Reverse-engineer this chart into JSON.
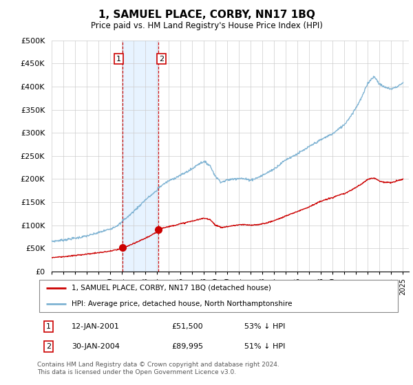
{
  "title": "1, SAMUEL PLACE, CORBY, NN17 1BQ",
  "subtitle": "Price paid vs. HM Land Registry's House Price Index (HPI)",
  "ylim": [
    0,
    500000
  ],
  "yticks": [
    0,
    50000,
    100000,
    150000,
    200000,
    250000,
    300000,
    350000,
    400000,
    450000,
    500000
  ],
  "ytick_labels": [
    "£0",
    "£50K",
    "£100K",
    "£150K",
    "£200K",
    "£250K",
    "£300K",
    "£350K",
    "£400K",
    "£450K",
    "£500K"
  ],
  "sale1_date": 2001.04,
  "sale1_price": 51500,
  "sale2_date": 2004.08,
  "sale2_price": 89995,
  "sale_color": "#cc0000",
  "hpi_color": "#7fb3d3",
  "legend_sale": "1, SAMUEL PLACE, CORBY, NN17 1BQ (detached house)",
  "legend_hpi": "HPI: Average price, detached house, North Northamptonshire",
  "table_row1": [
    "1",
    "12-JAN-2001",
    "£51,500",
    "53% ↓ HPI"
  ],
  "table_row2": [
    "2",
    "30-JAN-2004",
    "£89,995",
    "51% ↓ HPI"
  ],
  "footnote": "Contains HM Land Registry data © Crown copyright and database right 2024.\nThis data is licensed under the Open Government Licence v3.0.",
  "xmin": 1995.0,
  "xmax": 2025.5,
  "hpi_points": [
    [
      1995.0,
      65000
    ],
    [
      1995.5,
      66500
    ],
    [
      1996.0,
      68000
    ],
    [
      1996.5,
      70000
    ],
    [
      1997.0,
      72000
    ],
    [
      1997.5,
      74000
    ],
    [
      1998.0,
      77000
    ],
    [
      1998.5,
      80000
    ],
    [
      1999.0,
      84000
    ],
    [
      1999.5,
      88000
    ],
    [
      2000.0,
      92000
    ],
    [
      2000.5,
      98000
    ],
    [
      2001.0,
      106000
    ],
    [
      2001.04,
      110000
    ],
    [
      2001.5,
      118000
    ],
    [
      2002.0,
      130000
    ],
    [
      2002.5,
      142000
    ],
    [
      2003.0,
      155000
    ],
    [
      2003.5,
      165000
    ],
    [
      2004.0,
      175000
    ],
    [
      2004.08,
      180000
    ],
    [
      2004.5,
      188000
    ],
    [
      2005.0,
      196000
    ],
    [
      2005.5,
      202000
    ],
    [
      2006.0,
      208000
    ],
    [
      2006.5,
      215000
    ],
    [
      2007.0,
      222000
    ],
    [
      2007.5,
      232000
    ],
    [
      2008.0,
      238000
    ],
    [
      2008.5,
      230000
    ],
    [
      2009.0,
      205000
    ],
    [
      2009.5,
      193000
    ],
    [
      2010.0,
      198000
    ],
    [
      2010.5,
      200000
    ],
    [
      2011.0,
      202000
    ],
    [
      2011.5,
      200000
    ],
    [
      2012.0,
      198000
    ],
    [
      2012.5,
      202000
    ],
    [
      2013.0,
      208000
    ],
    [
      2013.5,
      215000
    ],
    [
      2014.0,
      222000
    ],
    [
      2014.5,
      232000
    ],
    [
      2015.0,
      242000
    ],
    [
      2015.5,
      248000
    ],
    [
      2016.0,
      255000
    ],
    [
      2016.5,
      262000
    ],
    [
      2017.0,
      270000
    ],
    [
      2017.5,
      278000
    ],
    [
      2018.0,
      285000
    ],
    [
      2018.5,
      292000
    ],
    [
      2019.0,
      298000
    ],
    [
      2019.5,
      308000
    ],
    [
      2020.0,
      318000
    ],
    [
      2020.5,
      335000
    ],
    [
      2021.0,
      355000
    ],
    [
      2021.5,
      378000
    ],
    [
      2022.0,
      408000
    ],
    [
      2022.5,
      422000
    ],
    [
      2022.75,
      415000
    ],
    [
      2023.0,
      405000
    ],
    [
      2023.5,
      398000
    ],
    [
      2024.0,
      395000
    ],
    [
      2024.5,
      400000
    ],
    [
      2025.0,
      408000
    ]
  ],
  "red_points": [
    [
      1995.0,
      30000
    ],
    [
      1995.5,
      31000
    ],
    [
      1996.0,
      32000
    ],
    [
      1996.5,
      33000
    ],
    [
      1997.0,
      34500
    ],
    [
      1997.5,
      36000
    ],
    [
      1998.0,
      37500
    ],
    [
      1998.5,
      39000
    ],
    [
      1999.0,
      40500
    ],
    [
      1999.5,
      42000
    ],
    [
      2000.0,
      44000
    ],
    [
      2000.5,
      46500
    ],
    [
      2001.0,
      49500
    ],
    [
      2001.04,
      51500
    ],
    [
      2001.5,
      55000
    ],
    [
      2002.0,
      60000
    ],
    [
      2002.5,
      66000
    ],
    [
      2003.0,
      72000
    ],
    [
      2003.5,
      78000
    ],
    [
      2004.0,
      85000
    ],
    [
      2004.08,
      89995
    ],
    [
      2004.5,
      94000
    ],
    [
      2005.0,
      97000
    ],
    [
      2005.5,
      100000
    ],
    [
      2006.0,
      103000
    ],
    [
      2006.5,
      106000
    ],
    [
      2007.0,
      109000
    ],
    [
      2007.5,
      112000
    ],
    [
      2008.0,
      115000
    ],
    [
      2008.5,
      113000
    ],
    [
      2009.0,
      100000
    ],
    [
      2009.5,
      95000
    ],
    [
      2010.0,
      97000
    ],
    [
      2010.5,
      99000
    ],
    [
      2011.0,
      101000
    ],
    [
      2011.5,
      101000
    ],
    [
      2012.0,
      100000
    ],
    [
      2012.5,
      101000
    ],
    [
      2013.0,
      103000
    ],
    [
      2013.5,
      106000
    ],
    [
      2014.0,
      110000
    ],
    [
      2014.5,
      115000
    ],
    [
      2015.0,
      120000
    ],
    [
      2015.5,
      125000
    ],
    [
      2016.0,
      130000
    ],
    [
      2016.5,
      135000
    ],
    [
      2017.0,
      140000
    ],
    [
      2017.5,
      146000
    ],
    [
      2018.0,
      152000
    ],
    [
      2018.5,
      156000
    ],
    [
      2019.0,
      160000
    ],
    [
      2019.5,
      165000
    ],
    [
      2020.0,
      168000
    ],
    [
      2020.5,
      175000
    ],
    [
      2021.0,
      182000
    ],
    [
      2021.5,
      190000
    ],
    [
      2022.0,
      200000
    ],
    [
      2022.5,
      202000
    ],
    [
      2022.75,
      200000
    ],
    [
      2023.0,
      195000
    ],
    [
      2023.5,
      193000
    ],
    [
      2024.0,
      192000
    ],
    [
      2024.5,
      196000
    ],
    [
      2025.0,
      200000
    ]
  ]
}
